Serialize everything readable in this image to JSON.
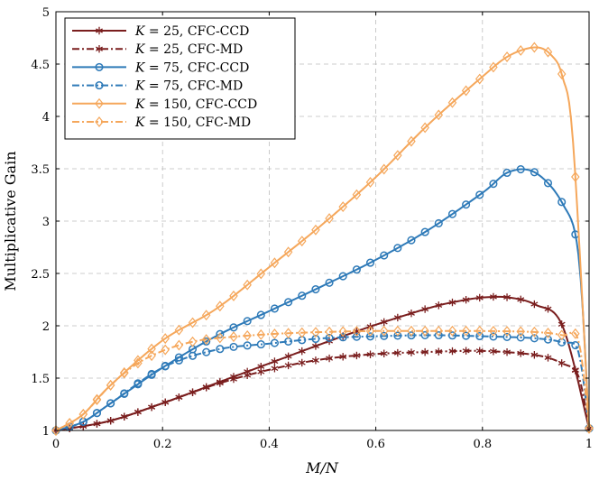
{
  "chart_data": {
    "type": "line",
    "title": "",
    "xlabel": "M/N",
    "ylabel": "Multiplicative Gain",
    "xlim": [
      0,
      1
    ],
    "ylim": [
      1,
      5
    ],
    "xticks": [
      "0",
      "0.2",
      "0.4",
      "0.6",
      "0.8",
      "1"
    ],
    "yticks": [
      "1",
      "1.5",
      "2",
      "2.5",
      "3",
      "3.5",
      "4",
      "4.5",
      "5"
    ],
    "grid": true,
    "legend_position": "top-left",
    "colors": {
      "k25": "#7a1e1e",
      "k75": "#2e7ab8",
      "k150": "#f5a75b"
    },
    "series": [
      {
        "name": "K = 25, CFC-CCD",
        "k": "25",
        "scheme": "CFC-CCD",
        "color": "#7a1e1e",
        "dash": "solid",
        "marker": "star",
        "x": [
          0,
          0.1,
          0.2,
          0.3,
          0.4,
          0.5,
          0.6,
          0.7,
          0.75,
          0.8,
          0.85,
          0.9,
          0.95,
          1.0
        ],
        "y": [
          1.0,
          1.09,
          1.26,
          1.45,
          1.64,
          1.83,
          2.01,
          2.17,
          2.23,
          2.27,
          2.27,
          2.2,
          2.0,
          1.02
        ]
      },
      {
        "name": "K = 25, CFC-MD",
        "k": "25",
        "scheme": "CFC-MD",
        "color": "#7a1e1e",
        "dash": "dashdot",
        "marker": "star",
        "x": [
          0,
          0.1,
          0.2,
          0.3,
          0.4,
          0.5,
          0.6,
          0.7,
          0.8,
          0.9,
          0.95,
          0.98,
          1.0
        ],
        "y": [
          1.0,
          1.09,
          1.26,
          1.44,
          1.58,
          1.68,
          1.73,
          1.75,
          1.76,
          1.72,
          1.64,
          1.52,
          1.02
        ]
      },
      {
        "name": "K = 75, CFC-CCD",
        "k": "75",
        "scheme": "CFC-CCD",
        "color": "#2e7ab8",
        "dash": "solid",
        "marker": "circle",
        "x": [
          0,
          0.05,
          0.1,
          0.2,
          0.3,
          0.4,
          0.5,
          0.6,
          0.7,
          0.8,
          0.85,
          0.9,
          0.95,
          0.98,
          1.0
        ],
        "y": [
          1.0,
          1.08,
          1.25,
          1.6,
          1.9,
          2.14,
          2.38,
          2.63,
          2.92,
          3.27,
          3.47,
          3.46,
          3.17,
          2.68,
          1.02
        ]
      },
      {
        "name": "K = 75, CFC-MD",
        "k": "75",
        "scheme": "CFC-MD",
        "color": "#2e7ab8",
        "dash": "dashdot",
        "marker": "circle",
        "x": [
          0,
          0.05,
          0.1,
          0.2,
          0.3,
          0.4,
          0.5,
          0.6,
          0.7,
          0.8,
          0.9,
          0.95,
          0.98,
          1.0
        ],
        "y": [
          1.0,
          1.08,
          1.25,
          1.6,
          1.77,
          1.83,
          1.88,
          1.9,
          1.91,
          1.9,
          1.88,
          1.84,
          1.75,
          1.02
        ]
      },
      {
        "name": "K = 150, CFC-CCD",
        "k": "150",
        "scheme": "CFC-CCD",
        "color": "#f5a75b",
        "dash": "solid",
        "marker": "diamond",
        "x": [
          0,
          0.05,
          0.1,
          0.2,
          0.3,
          0.4,
          0.5,
          0.6,
          0.7,
          0.8,
          0.85,
          0.9,
          0.93,
          0.95,
          0.97,
          1.0
        ],
        "y": [
          1.0,
          1.15,
          1.42,
          1.86,
          2.16,
          2.56,
          2.97,
          3.42,
          3.93,
          4.38,
          4.58,
          4.66,
          4.58,
          4.38,
          3.75,
          1.02
        ]
      },
      {
        "name": "K = 150, CFC-MD",
        "k": "150",
        "scheme": "CFC-MD",
        "color": "#f5a75b",
        "dash": "dashdot",
        "marker": "diamond",
        "x": [
          0,
          0.05,
          0.1,
          0.15,
          0.2,
          0.25,
          0.3,
          0.4,
          0.5,
          0.6,
          0.7,
          0.8,
          0.9,
          0.95,
          0.98,
          1.0
        ],
        "y": [
          1.0,
          1.15,
          1.42,
          1.63,
          1.76,
          1.84,
          1.88,
          1.92,
          1.94,
          1.95,
          1.95,
          1.95,
          1.94,
          1.91,
          1.86,
          1.02
        ]
      }
    ]
  }
}
